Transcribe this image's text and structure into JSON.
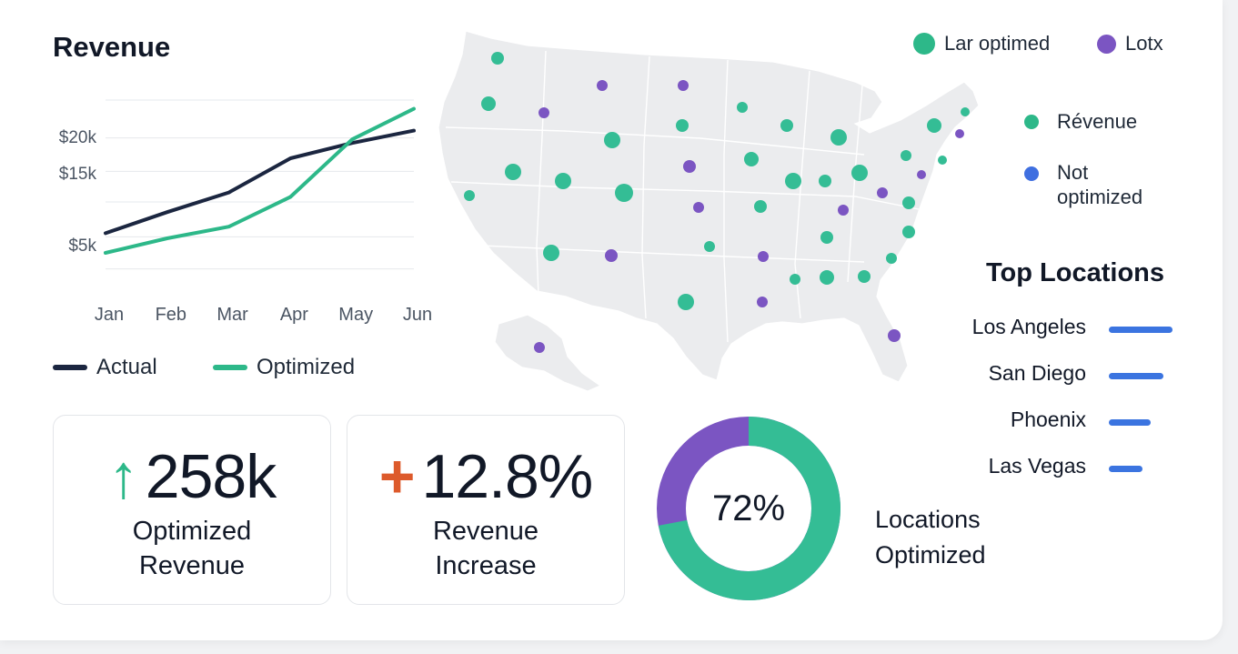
{
  "revenue": {
    "title": "Revenue",
    "legend": [
      {
        "label": "Actual",
        "color": "#1b2640"
      },
      {
        "label": "Optimized",
        "color": "#2db889"
      }
    ]
  },
  "chart_data": {
    "type": "line",
    "title": "Revenue",
    "x": [
      "Jan",
      "Feb",
      "Mar",
      "Apr",
      "May",
      "Jun"
    ],
    "ytick_labels": [
      "$20k",
      "$15k",
      "$5k"
    ],
    "ytick_values": [
      20,
      15,
      5
    ],
    "series": [
      {
        "name": "Actual",
        "color": "#1b2640",
        "values": [
          6.7,
          9.6,
          12.3,
          17.0,
          19.1,
          20.8
        ]
      },
      {
        "name": "Optimized",
        "color": "#2db889",
        "values": [
          4.0,
          6.0,
          7.6,
          11.7,
          19.6,
          23.8
        ]
      }
    ],
    "grid": true
  },
  "kpis": [
    {
      "icon": "↑",
      "icon_name": "arrow-up-icon",
      "icon_color": "#2db889",
      "value": "258k",
      "label_line1": "Optimized",
      "label_line2": "Revenue"
    },
    {
      "icon": "+",
      "icon_name": "plus-icon",
      "icon_color": "#dd5a2b",
      "value": "12.8%",
      "label_line1": "Revenue",
      "label_line2": "Increase"
    }
  ],
  "donut": {
    "percent_value": 72,
    "percent_label": "72%",
    "label_line1": "Locations",
    "label_line2": "Optimized",
    "colors": {
      "optimized": "#34bd95",
      "other": "#7b55c2"
    }
  },
  "map": {
    "legend_top": [
      {
        "label": "Lar optimed",
        "color": "#2db889"
      },
      {
        "label": "Lotx",
        "color": "#7b55c2"
      }
    ],
    "legend_side": [
      {
        "label": "Révenue",
        "color": "#2db889"
      },
      {
        "label_line1": "Not",
        "label_line2": "optimized",
        "color": "#3f6fe0"
      }
    ]
  },
  "top_locations": {
    "title": "Top Locations",
    "items": [
      {
        "name": "Los Angeles",
        "share": 1.0
      },
      {
        "name": "San Diego",
        "share": 0.86
      },
      {
        "name": "Phoenix",
        "share": 0.66
      },
      {
        "name": "Las Vegas",
        "share": 0.53
      }
    ]
  }
}
